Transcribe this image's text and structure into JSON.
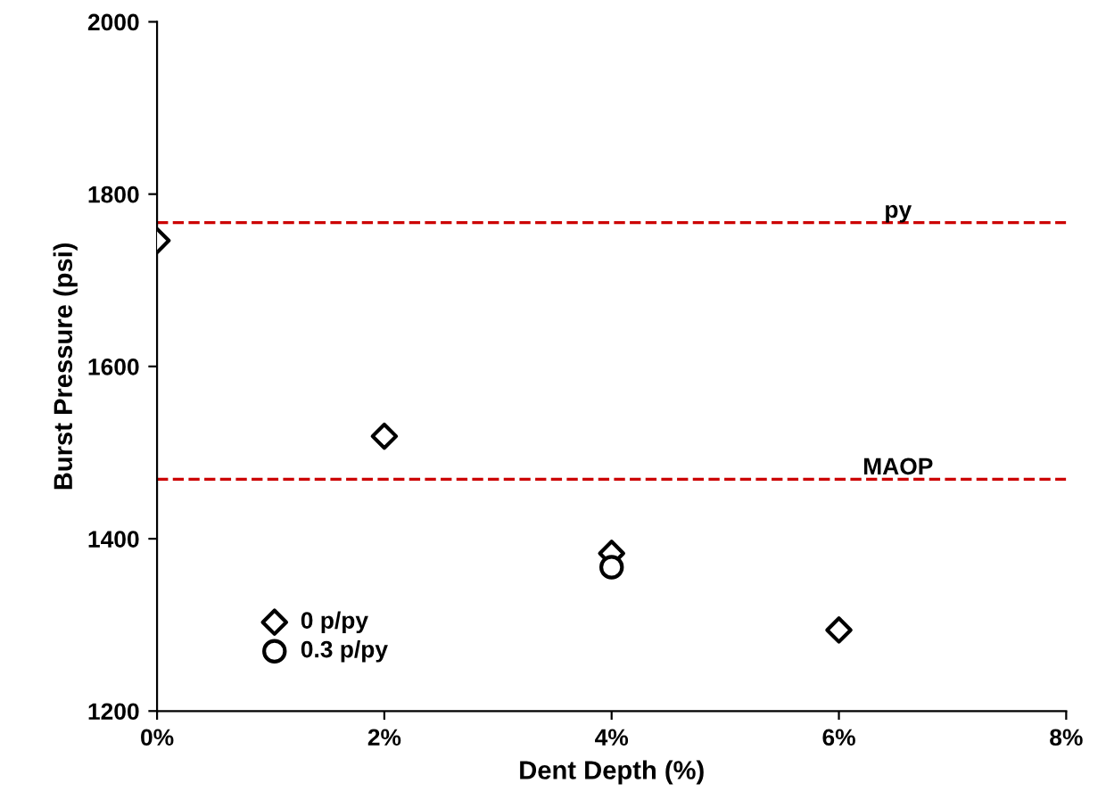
{
  "chart_data": {
    "type": "scatter",
    "xlabel": "Dent Depth (%)",
    "ylabel": "Burst Pressure (psi)",
    "xlim": [
      0,
      8
    ],
    "xticks": [
      {
        "value": 0,
        "label": "0%"
      },
      {
        "value": 2,
        "label": "2%"
      },
      {
        "value": 4,
        "label": "4%"
      },
      {
        "value": 6,
        "label": "6%"
      },
      {
        "value": 8,
        "label": "8%"
      }
    ],
    "ylim": [
      1200,
      2000
    ],
    "yticks": [
      1200,
      1400,
      1600,
      1800,
      2000
    ],
    "series": [
      {
        "name": "0 p/py",
        "color": "#000000",
        "marker": "diamond",
        "x": [
          0,
          2,
          4,
          6
        ],
        "values": [
          1746,
          1519,
          1383,
          1294
        ]
      },
      {
        "name": "0.3 p/py",
        "color": "#000000",
        "marker": "circle",
        "x": [
          4
        ],
        "values": [
          1367
        ]
      }
    ],
    "ref_lines": [
      {
        "axis": "y",
        "value": 1767,
        "label": "py",
        "color": "#cc0000",
        "line_style": "dashed"
      },
      {
        "axis": "y",
        "value": 1469,
        "label": "MAOP",
        "color": "#cc0000",
        "line_style": "dashed"
      }
    ],
    "grid": false,
    "legend": "bottom left"
  }
}
